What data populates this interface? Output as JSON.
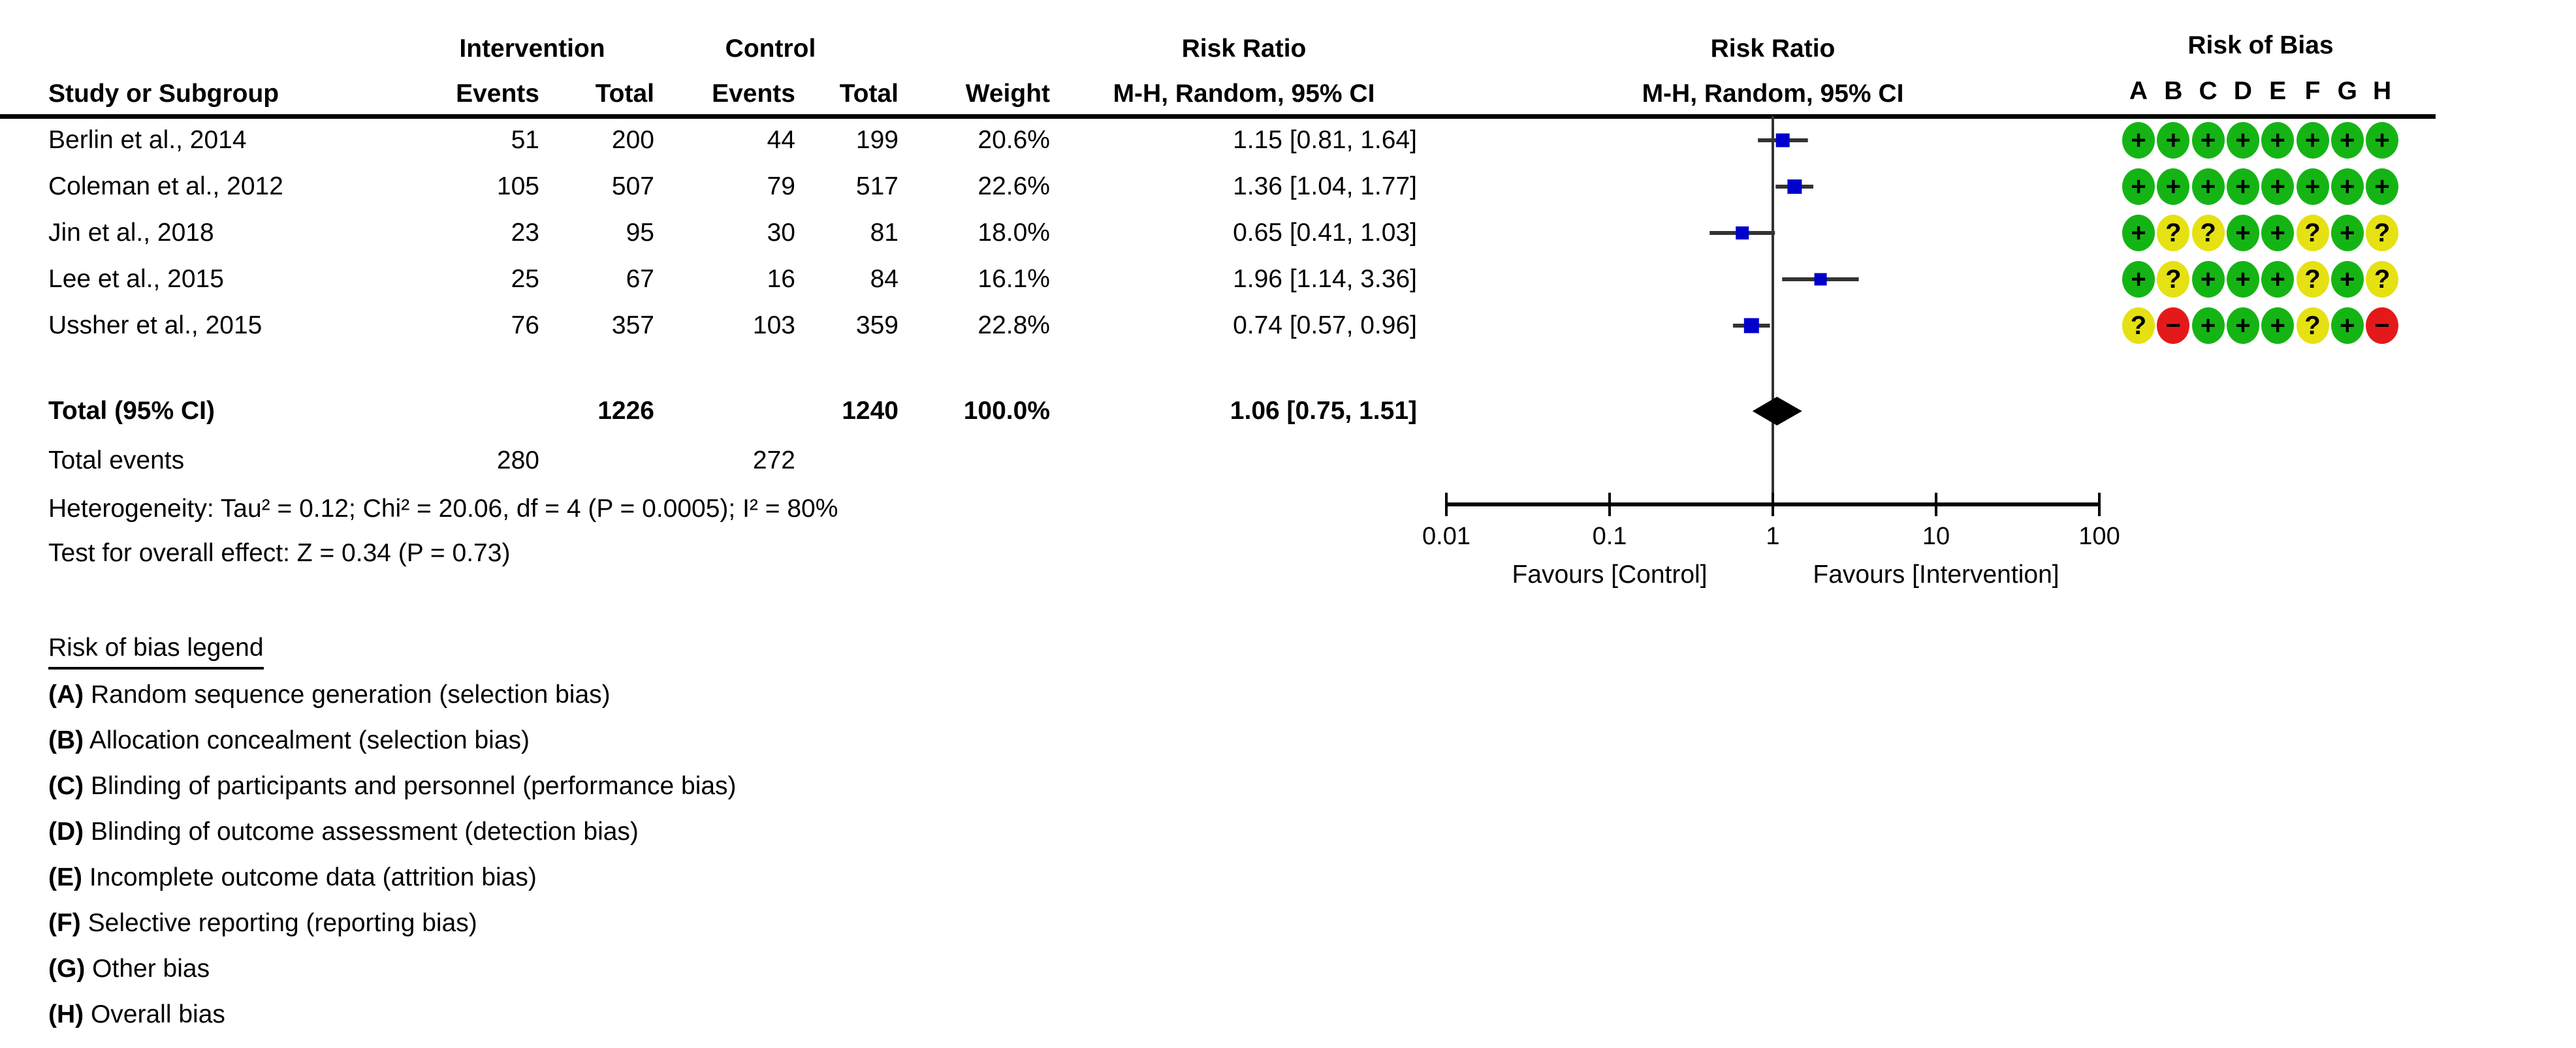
{
  "header": {
    "study_col": "Study or Subgroup",
    "intervention_group": "Intervention",
    "control_group": "Control",
    "events": "Events",
    "total": "Total",
    "weight": "Weight",
    "risk_ratio": "Risk Ratio",
    "method_ci": "M-H, Random, 95% CI",
    "risk_of_bias": "Risk of Bias",
    "bias_columns": [
      "A",
      "B",
      "C",
      "D",
      "E",
      "F",
      "G",
      "H"
    ]
  },
  "studies": [
    {
      "name": "Berlin et al., 2014",
      "events_intervention": "51",
      "total_intervention": "200",
      "events_control": "44",
      "total_control": "199",
      "weight": "20.6%",
      "rr_text": "1.15 [0.81, 1.64]",
      "bias": [
        "+",
        "+",
        "+",
        "+",
        "+",
        "+",
        "+",
        "+"
      ]
    },
    {
      "name": "Coleman et al., 2012",
      "events_intervention": "105",
      "total_intervention": "507",
      "events_control": "79",
      "total_control": "517",
      "weight": "22.6%",
      "rr_text": "1.36 [1.04, 1.77]",
      "bias": [
        "+",
        "+",
        "+",
        "+",
        "+",
        "+",
        "+",
        "+"
      ]
    },
    {
      "name": "Jin et al., 2018",
      "events_intervention": "23",
      "total_intervention": "95",
      "events_control": "30",
      "total_control": "81",
      "weight": "18.0%",
      "rr_text": "0.65 [0.41, 1.03]",
      "bias": [
        "+",
        "?",
        "?",
        "+",
        "+",
        "?",
        "+",
        "?"
      ]
    },
    {
      "name": "Lee et al., 2015",
      "events_intervention": "25",
      "total_intervention": "67",
      "events_control": "16",
      "total_control": "84",
      "weight": "16.1%",
      "rr_text": "1.96 [1.14, 3.36]",
      "bias": [
        "+",
        "?",
        "+",
        "+",
        "+",
        "?",
        "+",
        "?"
      ]
    },
    {
      "name": "Ussher et al., 2015",
      "events_intervention": "76",
      "total_intervention": "357",
      "events_control": "103",
      "total_control": "359",
      "weight": "22.8%",
      "rr_text": "0.74 [0.57, 0.96]",
      "bias": [
        "?",
        "−",
        "+",
        "+",
        "+",
        "?",
        "+",
        "−"
      ]
    }
  ],
  "totals": {
    "label": "Total (95% CI)",
    "total_intervention": "1226",
    "total_control": "1240",
    "weight": "100.0%",
    "rr_text": "1.06 [0.75, 1.51]",
    "events_label": "Total events",
    "events_intervention": "280",
    "events_control": "272"
  },
  "stats": {
    "heterogeneity": "Heterogeneity: Tau² = 0.12; Chi² = 20.06, df = 4 (P = 0.0005); I² = 80%",
    "overall_effect": "Test for overall effect: Z = 0.34 (P = 0.73)"
  },
  "axis": {
    "tick_labels": [
      "0.01",
      "0.1",
      "1",
      "10",
      "100"
    ],
    "favours_left": "Favours [Control]",
    "favours_right": "Favours [Intervention]"
  },
  "legend": {
    "title": "Risk of bias legend",
    "items": [
      {
        "key": "(A)",
        "text": " Random sequence generation (selection bias)"
      },
      {
        "key": "(B)",
        "text": " Allocation concealment (selection bias)"
      },
      {
        "key": "(C)",
        "text": " Blinding of participants and personnel (performance bias)"
      },
      {
        "key": "(D)",
        "text": " Blinding of outcome assessment (detection bias)"
      },
      {
        "key": "(E)",
        "text": " Incomplete outcome data (attrition bias)"
      },
      {
        "key": "(F)",
        "text": " Selective reporting (reporting bias)"
      },
      {
        "key": "(G)",
        "text": " Other bias"
      },
      {
        "key": "(H)",
        "text": " Overall bias"
      }
    ]
  },
  "colors": {
    "marker_blue": "#0000cc",
    "line_dark": "#333333",
    "black": "#000000",
    "bias_low": "#15b415",
    "bias_unclear": "#e6e112",
    "bias_high": "#e41a1a"
  },
  "chart_data": {
    "type": "forest",
    "effect_measure": "Risk Ratio",
    "method": "M-H, Random, 95% CI",
    "x_scale": "log10",
    "x_ticks": [
      0.01,
      0.1,
      1,
      10,
      100
    ],
    "xlim": [
      0.01,
      100
    ],
    "null_line_at": 1,
    "studies": [
      {
        "name": "Berlin et al., 2014",
        "rr": 1.15,
        "ci": [
          0.81,
          1.64
        ],
        "weight_pct": 20.6
      },
      {
        "name": "Coleman et al., 2012",
        "rr": 1.36,
        "ci": [
          1.04,
          1.77
        ],
        "weight_pct": 22.6
      },
      {
        "name": "Jin et al., 2018",
        "rr": 0.65,
        "ci": [
          0.41,
          1.03
        ],
        "weight_pct": 18.0
      },
      {
        "name": "Lee et al., 2015",
        "rr": 1.96,
        "ci": [
          1.14,
          3.36
        ],
        "weight_pct": 16.1
      },
      {
        "name": "Ussher et al., 2015",
        "rr": 0.74,
        "ci": [
          0.57,
          0.96
        ],
        "weight_pct": 22.8
      }
    ],
    "total": {
      "name": "Total (95% CI)",
      "rr": 1.06,
      "ci": [
        0.75,
        1.51
      ],
      "weight_pct": 100.0
    },
    "heterogeneity": {
      "tau2": 0.12,
      "chi2": 20.06,
      "df": 4,
      "p": 0.0005,
      "i2_pct": 80
    },
    "overall_effect": {
      "z": 0.34,
      "p": 0.73
    },
    "favours": [
      "Favours [Control]",
      "Favours [Intervention]"
    ]
  }
}
